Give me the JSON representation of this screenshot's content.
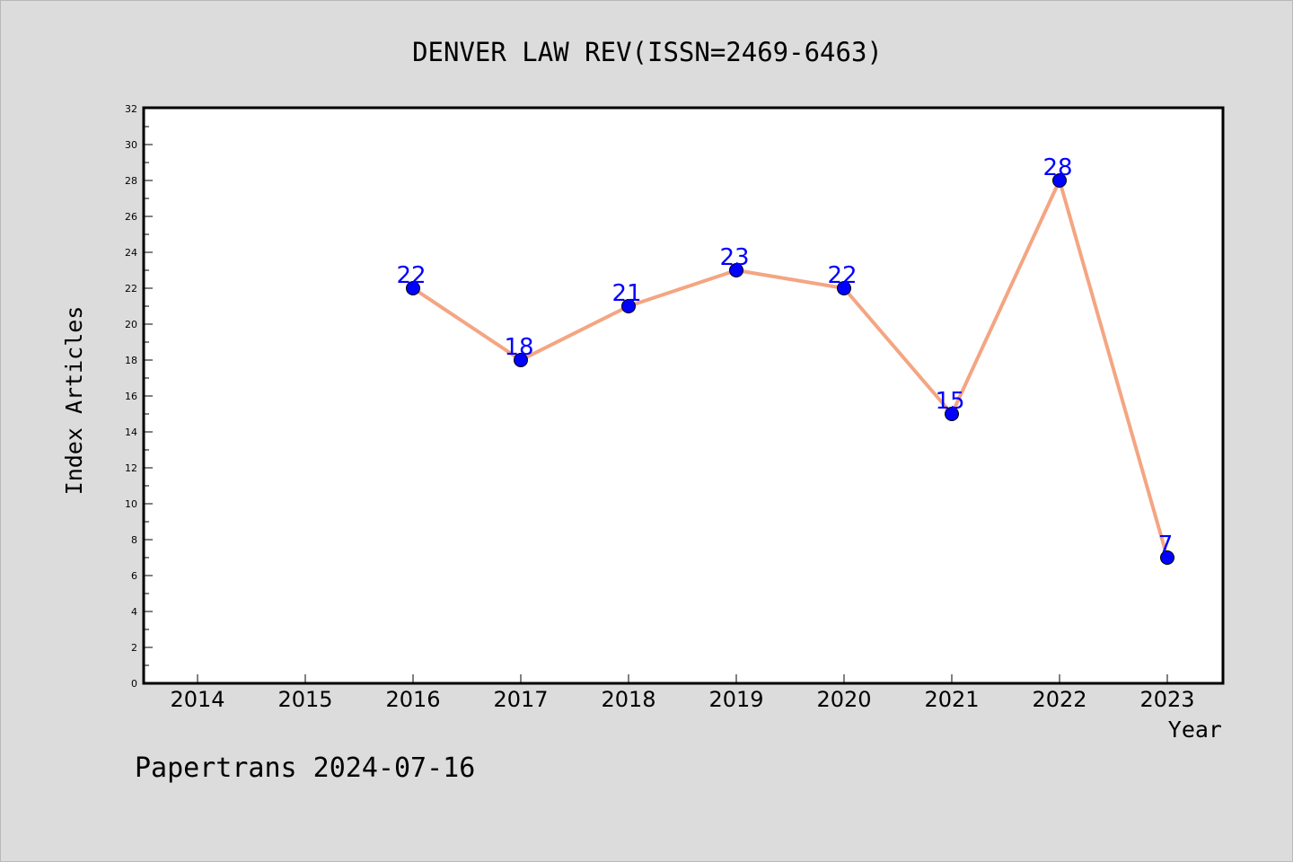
{
  "chart_data": {
    "type": "line",
    "title": "DENVER LAW REV(ISSN=2469-6463)",
    "xlabel": "Year",
    "ylabel": "Index Articles",
    "categories": [
      "2014",
      "2015",
      "2016",
      "2017",
      "2018",
      "2019",
      "2020",
      "2021",
      "2022",
      "2023"
    ],
    "series": [
      {
        "values": [
          null,
          null,
          22,
          18,
          21,
          23,
          22,
          15,
          28,
          7
        ]
      }
    ],
    "ylim": [
      0,
      32
    ],
    "yticks": [
      0,
      2,
      4,
      6,
      8,
      10,
      12,
      14,
      16,
      18,
      20,
      22,
      24,
      26,
      28,
      30,
      32
    ],
    "grid": false,
    "legend": "none",
    "line_color": "#f4a582",
    "marker_color": "#0000ff",
    "label_color": "#0000ff"
  },
  "footer": "Papertrans 2024-07-16"
}
